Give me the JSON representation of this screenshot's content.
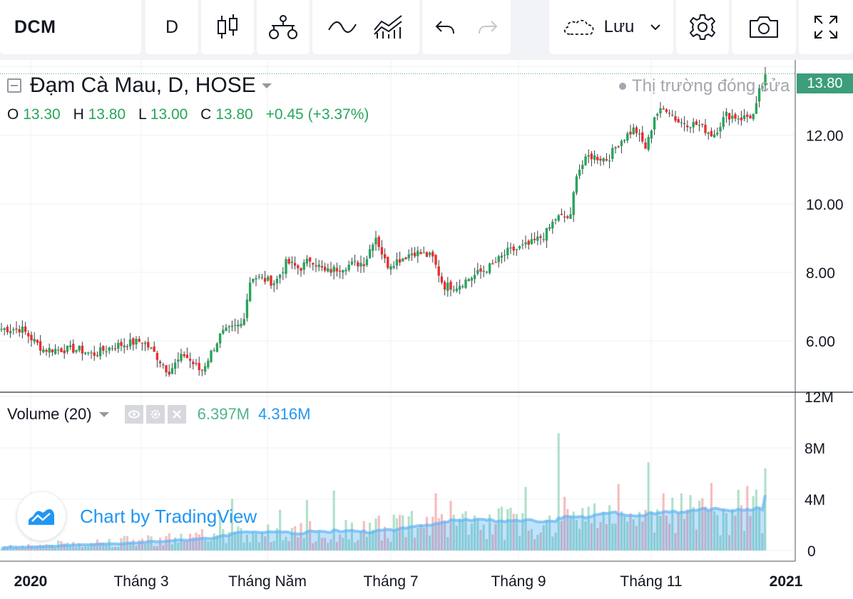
{
  "toolbar": {
    "symbol": "DCM",
    "interval": "D",
    "save_label": "Lưu"
  },
  "legend": {
    "title": "Đạm Cà Mau, D, HOSE",
    "o_label": "O",
    "o_value": "13.30",
    "h_label": "H",
    "h_value": "13.80",
    "l_label": "L",
    "l_value": "13.00",
    "c_label": "C",
    "c_value": "13.80",
    "change": "+0.45 (+3.37%)",
    "market_status": "Thị trường đóng cửa",
    "last_price": "13.80"
  },
  "volume_legend": {
    "label": "Volume (20)",
    "volume": "6.397M",
    "ma": "4.316M"
  },
  "watermark": "Chart by TradingView",
  "colors": {
    "up": "#26a65b",
    "down": "#ef2c2c",
    "volume_ma": "#2196f3",
    "last_price_tag": "#3c9e7a"
  },
  "chart_data": {
    "type": "candlestick",
    "title": "Đạm Cà Mau, D, HOSE",
    "x_ticks": [
      "2020",
      "Tháng 3",
      "Tháng Năm",
      "Tháng 7",
      "Tháng 9",
      "Tháng 11",
      "2021"
    ],
    "y_ticks": [
      "6.00",
      "8.00",
      "10.00",
      "12.00"
    ],
    "ylim": [
      4.5,
      14.2
    ],
    "volume_ticks": [
      "0",
      "4M",
      "8M",
      "12M"
    ],
    "volume_ylim": [
      0,
      12
    ],
    "close_approx": [
      {
        "x": "2020",
        "close": 5.8
      },
      {
        "x": "Tháng 3",
        "close": 5.6
      },
      {
        "x": "Tháng Năm",
        "close": 7.8
      },
      {
        "x": "Tháng 7",
        "close": 8.5
      },
      {
        "x": "Tháng 9",
        "close": 8.9
      },
      {
        "x": "Tháng 11",
        "close": 12.6
      },
      {
        "x": "2021",
        "close": 13.8
      }
    ],
    "last_bar": {
      "open": 13.3,
      "high": 13.8,
      "low": 13.0,
      "close": 13.8
    },
    "last_volume_millions": 6.397,
    "last_volume_ma_millions": 4.316
  }
}
